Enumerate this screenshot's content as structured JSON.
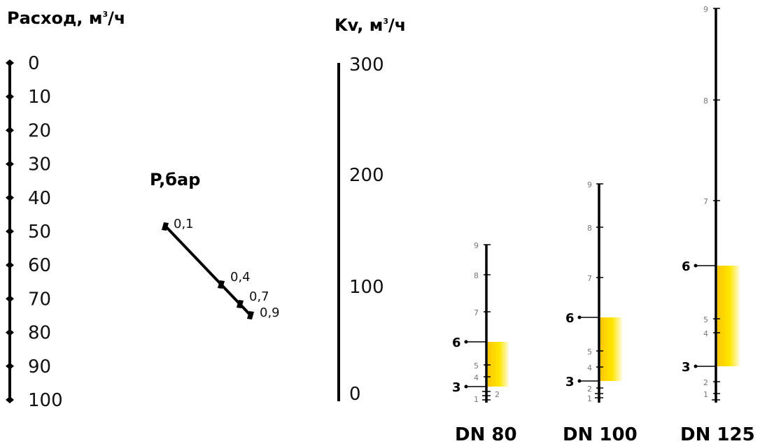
{
  "flow_scale": {
    "title": "Расход, м",
    "title_sup": "3",
    "title_unit": "/ч",
    "ticks": [
      "0",
      "10",
      "20",
      "30",
      "40",
      "50",
      "60",
      "70",
      "80",
      "90",
      "100"
    ]
  },
  "pressure_scale": {
    "title": "P,бар",
    "ticks": [
      "0,1",
      "0,4",
      "0,7",
      "0,9"
    ]
  },
  "kv_scale": {
    "title": "Kv, м",
    "title_sup": "3",
    "title_unit": "/ч",
    "ticks": [
      "300",
      "200",
      "100",
      "0"
    ]
  },
  "valves": [
    {
      "name": "DN 80",
      "ticks": [
        "9",
        "8",
        "7",
        "5",
        "4",
        "1"
      ],
      "extra_tick": "2",
      "range_low": "3",
      "range_high": "6"
    },
    {
      "name": "DN 100",
      "ticks": [
        "9",
        "8",
        "7",
        "5",
        "4",
        "2",
        "1"
      ],
      "range_low": "3",
      "range_high": "6"
    },
    {
      "name": "DN 125",
      "ticks": [
        "9",
        "8",
        "7",
        "5",
        "4",
        "2",
        "1"
      ],
      "range_low": "3",
      "range_high": "6"
    }
  ],
  "colors": {
    "highlight_top": "#FFD400",
    "highlight_bottom": "#FFFFFF",
    "axis": "#000000"
  }
}
